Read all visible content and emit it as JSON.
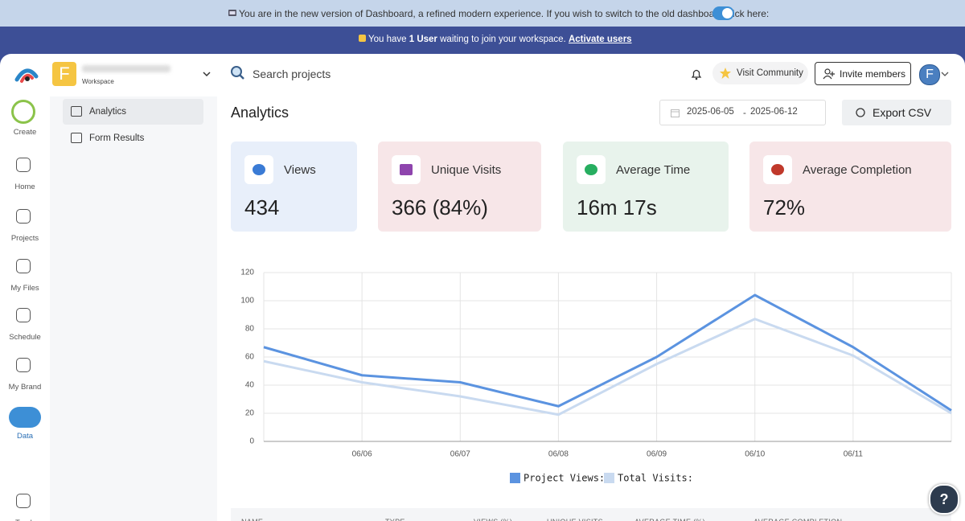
{
  "banner": {
    "text": "You are in the new version of Dashboard, a refined modern experience. If you wish to switch to the old dashboard click here:"
  },
  "invite": {
    "prefix": "You have",
    "count": "1 User",
    "suffix": "waiting to join your workspace.",
    "link": "Activate users"
  },
  "nav": [
    "Create",
    "Home",
    "Projects",
    "My Files",
    "Schedule",
    "My Brand",
    "Data",
    "Trash"
  ],
  "workspace": {
    "initial": "F",
    "label": "Workspace"
  },
  "subnav": [
    "Analytics",
    "Form Results"
  ],
  "header": {
    "search": "Search projects",
    "community": "Visit Community",
    "invite": "Invite members",
    "avatar": "F"
  },
  "page": {
    "title": "Analytics",
    "date_from": "2025-06-05",
    "date_sep": "-",
    "date_to": "2025-06-12",
    "export": "Export CSV"
  },
  "cards": [
    {
      "label": "Views",
      "value": "434"
    },
    {
      "label": "Unique Visits",
      "value": "366 (84%)"
    },
    {
      "label": "Average Time",
      "value": "16m 17s"
    },
    {
      "label": "Average Completion",
      "value": "72%"
    }
  ],
  "chart_data": {
    "type": "line",
    "categories": [
      null,
      "06/06",
      "06/07",
      "06/08",
      "06/09",
      "06/10",
      "06/11",
      null
    ],
    "series": [
      {
        "name": "Project Views:",
        "color": "#5b93e0",
        "values": [
          67,
          47,
          42,
          25,
          60,
          104,
          67,
          22
        ]
      },
      {
        "name": "Total Visits:",
        "color": "#c9daf0",
        "values": [
          57,
          42,
          32,
          19,
          55,
          87,
          61,
          20
        ]
      }
    ],
    "ylim": [
      0,
      120
    ],
    "yticks": [
      0,
      20,
      40,
      60,
      80,
      100,
      120
    ],
    "grid": true,
    "legend": "bottom"
  },
  "table": {
    "columns": [
      "NAME",
      "TYPE",
      "VIEWS (%)",
      "UNIQUE VISITS",
      "AVERAGE TIME (%)",
      "AVERAGE COMPLETION"
    ]
  },
  "help": "?"
}
